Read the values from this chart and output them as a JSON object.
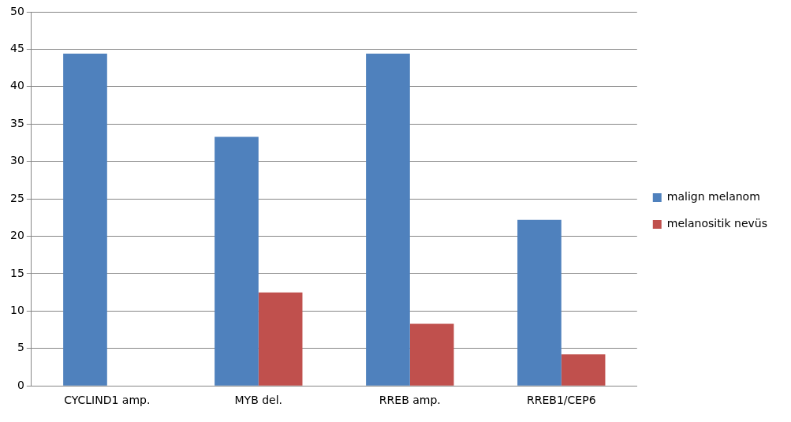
{
  "chart_data": {
    "type": "bar",
    "categories": [
      "CYCLIND1 amp.",
      "MYB del.",
      "RREB amp.",
      "RREB1/CEP6"
    ],
    "series": [
      {
        "name": "malign melanom",
        "color": "#4f81bd",
        "values": [
          44.4,
          33.3,
          44.4,
          22.2
        ]
      },
      {
        "name": "melanositik nevüs",
        "color": "#c0504d",
        "values": [
          0,
          12.5,
          8.3,
          4.2
        ]
      }
    ],
    "ylim": [
      0,
      50
    ],
    "yticks": [
      0,
      5,
      10,
      15,
      20,
      25,
      30,
      35,
      40,
      45,
      50
    ],
    "grid": "y",
    "legend": "right"
  }
}
